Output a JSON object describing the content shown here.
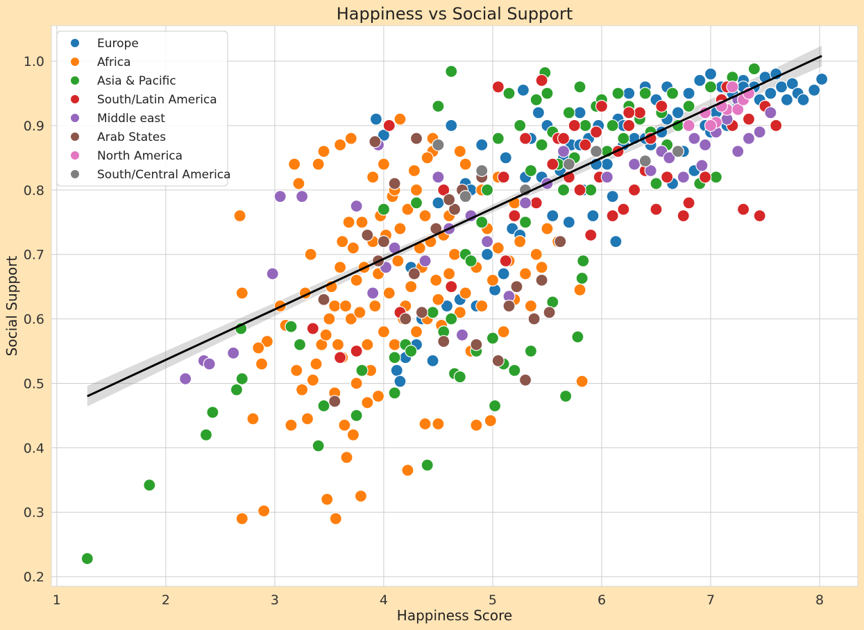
{
  "chart_data": {
    "type": "scatter",
    "title": "Happiness vs Social Support",
    "xlabel": "Happiness Score",
    "ylabel": "Social Support",
    "xlim": [
      0.95,
      8.35
    ],
    "ylim": [
      0.185,
      1.055
    ],
    "xticks": [
      1,
      2,
      3,
      4,
      5,
      6,
      7,
      8
    ],
    "yticks": [
      0.2,
      0.3,
      0.4,
      0.5,
      0.6,
      0.7,
      0.8,
      0.9,
      1.0
    ],
    "grid": true,
    "legend_placement": "top-left",
    "regression": {
      "x": [
        1.28,
        8.02
      ],
      "y": [
        0.48,
        1.008
      ],
      "ci_halfwidth_ends": 0.016,
      "color": "#000000"
    },
    "series": [
      {
        "name": "Europe",
        "color": "#1f77b4",
        "x": [
          3.93,
          4.0,
          4.12,
          4.15,
          4.2,
          4.3,
          4.45,
          4.58,
          4.62,
          4.7,
          4.85,
          4.9,
          5.02,
          5.1,
          5.12,
          5.18,
          5.28,
          5.35,
          5.42,
          5.5,
          5.55,
          5.62,
          5.7,
          5.72,
          5.8,
          5.83,
          5.88,
          5.92,
          5.97,
          6.0,
          6.05,
          6.1,
          6.13,
          6.15,
          6.2,
          6.25,
          6.3,
          6.35,
          6.4,
          6.45,
          6.5,
          6.55,
          6.6,
          6.65,
          6.7,
          6.75,
          6.8,
          6.85,
          6.9,
          6.95,
          7.0,
          7.05,
          7.1,
          7.15,
          7.2,
          7.25,
          7.3,
          7.35,
          7.4,
          7.45,
          7.5,
          7.55,
          7.6,
          7.65,
          7.7,
          7.75,
          7.8,
          7.85,
          7.95,
          8.02,
          4.25,
          4.35,
          4.5,
          4.75,
          4.95,
          5.25,
          5.45,
          5.65,
          5.95,
          6.2,
          6.4,
          6.8,
          7.1,
          7.3,
          7.5,
          5.8,
          5.3,
          4.8,
          6.6,
          7.0
        ],
        "y": [
          0.91,
          0.885,
          0.52,
          0.503,
          0.54,
          0.56,
          0.535,
          0.62,
          0.9,
          0.63,
          0.62,
          0.87,
          0.645,
          0.67,
          0.85,
          0.74,
          0.955,
          0.88,
          0.92,
          0.9,
          0.76,
          0.83,
          0.75,
          0.87,
          0.92,
          0.8,
          0.88,
          0.76,
          0.9,
          0.93,
          0.84,
          0.79,
          0.72,
          0.91,
          0.87,
          0.95,
          0.88,
          0.92,
          0.96,
          0.87,
          0.94,
          0.89,
          0.96,
          0.81,
          0.92,
          0.86,
          0.95,
          0.83,
          0.97,
          0.9,
          0.98,
          0.92,
          0.96,
          0.9,
          0.95,
          0.93,
          0.97,
          0.91,
          0.96,
          0.94,
          0.975,
          0.95,
          0.98,
          0.96,
          0.94,
          0.965,
          0.95,
          0.94,
          0.955,
          0.972,
          0.68,
          0.6,
          0.78,
          0.81,
          0.7,
          0.73,
          0.82,
          0.85,
          0.84,
          0.9,
          0.88,
          0.9,
          0.94,
          0.96,
          0.93,
          0.87,
          0.82,
          0.8,
          0.91,
          0.89
        ]
      },
      {
        "name": "Africa",
        "color": "#ff7f0e",
        "x": [
          2.7,
          2.7,
          2.8,
          2.93,
          2.85,
          2.88,
          3.15,
          3.2,
          3.25,
          3.3,
          3.35,
          3.38,
          3.43,
          3.47,
          3.5,
          3.52,
          3.55,
          3.58,
          3.6,
          3.62,
          3.65,
          3.68,
          3.7,
          3.72,
          3.75,
          3.78,
          3.8,
          3.82,
          3.85,
          3.88,
          3.9,
          3.92,
          3.95,
          3.97,
          4.0,
          4.02,
          4.05,
          4.08,
          4.1,
          4.13,
          4.15,
          4.18,
          4.2,
          4.22,
          4.25,
          4.28,
          4.3,
          4.33,
          4.35,
          4.38,
          4.4,
          4.43,
          4.45,
          4.48,
          4.5,
          4.53,
          4.55,
          4.6,
          4.65,
          4.7,
          4.75,
          4.8,
          4.85,
          4.9,
          4.95,
          5.0,
          5.05,
          5.1,
          5.15,
          5.2,
          5.25,
          5.3,
          5.35,
          5.4,
          5.45,
          5.5,
          5.6,
          5.8,
          5.82,
          2.68,
          2.7,
          2.9,
          3.05,
          3.18,
          3.28,
          3.4,
          3.48,
          3.56,
          3.64,
          3.66,
          3.72,
          3.79,
          3.45,
          3.6,
          4.22,
          4.38,
          4.5,
          4.85,
          4.98,
          3.22,
          3.1,
          3.33,
          3.7,
          4.0,
          4.3,
          4.6,
          4.9,
          5.2,
          3.55,
          3.85,
          4.15,
          4.45,
          4.75,
          5.05,
          3.9,
          4.1,
          4.4,
          4.7,
          3.62,
          3.75,
          3.95
        ],
        "y": [
          0.29,
          0.64,
          0.445,
          0.565,
          0.555,
          0.53,
          0.435,
          0.52,
          0.49,
          0.445,
          0.505,
          0.53,
          0.56,
          0.575,
          0.6,
          0.65,
          0.62,
          0.56,
          0.68,
          0.72,
          0.62,
          0.75,
          0.6,
          0.71,
          0.66,
          0.61,
          0.75,
          0.68,
          0.56,
          0.52,
          0.72,
          0.62,
          0.67,
          0.76,
          0.58,
          0.73,
          0.64,
          0.79,
          0.56,
          0.69,
          0.74,
          0.6,
          0.62,
          0.77,
          0.65,
          0.83,
          0.58,
          0.71,
          0.68,
          0.76,
          0.6,
          0.72,
          0.86,
          0.66,
          0.63,
          0.59,
          0.73,
          0.67,
          0.7,
          0.61,
          0.64,
          0.55,
          0.68,
          0.62,
          0.74,
          0.66,
          0.71,
          0.58,
          0.69,
          0.63,
          0.72,
          0.67,
          0.62,
          0.7,
          0.68,
          0.74,
          0.72,
          0.645,
          0.503,
          0.76,
          0.29,
          0.302,
          0.62,
          0.84,
          0.64,
          0.84,
          0.32,
          0.29,
          0.435,
          0.385,
          0.42,
          0.325,
          0.86,
          0.87,
          0.365,
          0.437,
          0.437,
          0.435,
          0.442,
          0.81,
          0.59,
          0.7,
          0.88,
          0.84,
          0.8,
          0.76,
          0.8,
          0.78,
          0.485,
          0.47,
          0.91,
          0.88,
          0.84,
          0.82,
          0.82,
          0.8,
          0.85,
          0.86,
          0.54,
          0.5,
          0.48
        ]
      },
      {
        "name": "Asia & Pacific",
        "color": "#2ca02c",
        "x": [
          1.28,
          1.85,
          2.37,
          2.43,
          2.65,
          2.69,
          2.7,
          3.15,
          3.23,
          3.4,
          3.45,
          3.75,
          3.8,
          4.1,
          4.2,
          4.25,
          4.4,
          4.45,
          4.62,
          4.65,
          4.7,
          4.75,
          4.8,
          4.85,
          4.9,
          4.95,
          5.0,
          5.05,
          5.1,
          5.15,
          5.2,
          5.25,
          5.3,
          5.35,
          5.4,
          5.45,
          5.5,
          5.55,
          5.6,
          5.65,
          5.7,
          5.75,
          5.8,
          5.83,
          5.85,
          5.9,
          5.95,
          6.0,
          6.05,
          6.1,
          6.15,
          6.2,
          6.25,
          6.3,
          6.35,
          6.4,
          6.45,
          6.5,
          6.55,
          6.6,
          6.65,
          6.7,
          6.8,
          6.9,
          7.0,
          7.05,
          7.2,
          7.4,
          4.62,
          5.48,
          5.67,
          5.78,
          5.82,
          4.5,
          4.3,
          4.0,
          3.9,
          4.1,
          4.55,
          5.02,
          5.35,
          5.55
        ],
        "y": [
          0.228,
          0.342,
          0.42,
          0.455,
          0.49,
          0.585,
          0.507,
          0.588,
          0.56,
          0.403,
          0.465,
          0.45,
          0.52,
          0.485,
          0.56,
          0.55,
          0.373,
          0.61,
          0.6,
          0.515,
          0.51,
          0.7,
          0.69,
          0.55,
          0.75,
          0.8,
          0.57,
          0.88,
          0.53,
          0.95,
          0.52,
          0.9,
          0.75,
          0.83,
          0.94,
          0.87,
          0.95,
          0.89,
          0.84,
          0.8,
          0.92,
          0.85,
          0.96,
          0.69,
          0.9,
          0.8,
          0.93,
          0.94,
          0.86,
          0.9,
          0.95,
          0.88,
          0.93,
          0.84,
          0.91,
          0.95,
          0.89,
          0.81,
          0.92,
          0.87,
          0.95,
          0.9,
          0.93,
          0.81,
          0.96,
          0.82,
          0.975,
          0.988,
          0.984,
          0.982,
          0.48,
          0.572,
          0.663,
          0.93,
          0.78,
          0.77,
          0.64,
          0.54,
          0.58,
          0.465,
          0.55,
          0.626
        ]
      },
      {
        "name": "South/Latin America",
        "color": "#d62728",
        "x": [
          3.35,
          3.6,
          3.75,
          4.05,
          4.15,
          4.55,
          4.62,
          5.05,
          5.1,
          5.2,
          5.3,
          5.4,
          5.45,
          5.55,
          5.6,
          5.7,
          5.75,
          5.8,
          5.85,
          5.9,
          5.95,
          6.0,
          6.1,
          6.15,
          6.2,
          6.25,
          6.3,
          6.35,
          6.4,
          6.45,
          6.5,
          6.55,
          6.6,
          6.7,
          6.75,
          6.8,
          6.85,
          6.95,
          7.1,
          7.2,
          7.3,
          7.35,
          7.45,
          7.5,
          7.6,
          7.15,
          6.25,
          5.98,
          5.65,
          5.12
        ],
        "y": [
          0.585,
          0.54,
          0.55,
          0.9,
          0.61,
          0.8,
          0.65,
          0.96,
          0.82,
          0.76,
          0.88,
          0.78,
          0.97,
          0.84,
          0.88,
          0.82,
          0.9,
          0.8,
          0.87,
          0.73,
          0.89,
          0.93,
          0.76,
          0.86,
          0.77,
          0.9,
          0.8,
          0.92,
          0.83,
          0.88,
          0.77,
          0.93,
          0.82,
          0.86,
          0.76,
          0.78,
          0.88,
          0.82,
          0.94,
          0.9,
          0.77,
          0.91,
          0.76,
          0.93,
          0.9,
          0.96,
          0.92,
          0.82,
          0.88,
          0.69
        ]
      },
      {
        "name": "Middle east",
        "color": "#9467bd",
        "x": [
          2.18,
          2.35,
          2.4,
          2.62,
          2.98,
          3.05,
          3.25,
          3.75,
          3.9,
          3.95,
          4.02,
          4.1,
          4.38,
          4.5,
          4.6,
          4.72,
          4.8,
          4.95,
          5.15,
          5.3,
          5.5,
          5.65,
          6.05,
          6.3,
          6.45,
          6.55,
          6.62,
          6.75,
          6.85,
          6.95,
          7.05,
          7.15,
          7.25,
          7.35,
          7.45,
          7.55,
          6.92,
          7.25
        ],
        "y": [
          0.507,
          0.535,
          0.53,
          0.547,
          0.67,
          0.79,
          0.79,
          0.775,
          0.64,
          0.87,
          0.68,
          0.71,
          0.69,
          0.82,
          0.74,
          0.575,
          0.76,
          0.72,
          0.635,
          0.78,
          0.81,
          0.86,
          0.82,
          0.84,
          0.83,
          0.86,
          0.85,
          0.82,
          0.88,
          0.87,
          0.89,
          0.91,
          0.86,
          0.88,
          0.89,
          0.92,
          0.838,
          0.94
        ]
      },
      {
        "name": "Arab States",
        "color": "#8c564b",
        "x": [
          3.45,
          3.55,
          3.85,
          3.92,
          4.1,
          4.2,
          4.28,
          4.35,
          4.48,
          4.55,
          4.65,
          4.72,
          4.85,
          4.9,
          5.05,
          5.15,
          5.22,
          5.3,
          5.38,
          5.45,
          5.52,
          5.62,
          4.3,
          4.6,
          4.0,
          3.95
        ],
        "y": [
          0.63,
          0.472,
          0.73,
          0.875,
          0.81,
          0.6,
          0.67,
          0.61,
          0.74,
          0.565,
          0.77,
          0.8,
          0.56,
          0.82,
          0.535,
          0.62,
          0.65,
          0.505,
          0.6,
          0.66,
          0.61,
          0.72,
          0.88,
          0.785,
          0.72,
          0.69
        ]
      },
      {
        "name": "North America",
        "color": "#e377c2",
        "x": [
          6.8,
          6.95,
          7.05,
          7.15,
          7.2,
          7.25,
          7.3,
          7.35,
          7.1,
          7.0
        ],
        "y": [
          0.9,
          0.92,
          0.905,
          0.925,
          0.96,
          0.925,
          0.94,
          0.95,
          0.93,
          0.9
        ]
      },
      {
        "name": "South/Central America",
        "color": "#7f7f7f",
        "x": [
          4.5,
          4.75,
          4.9,
          5.3,
          5.7,
          5.95,
          6.4,
          6.7
        ],
        "y": [
          0.87,
          0.79,
          0.83,
          0.8,
          0.84,
          0.86,
          0.845,
          0.86
        ]
      }
    ]
  }
}
